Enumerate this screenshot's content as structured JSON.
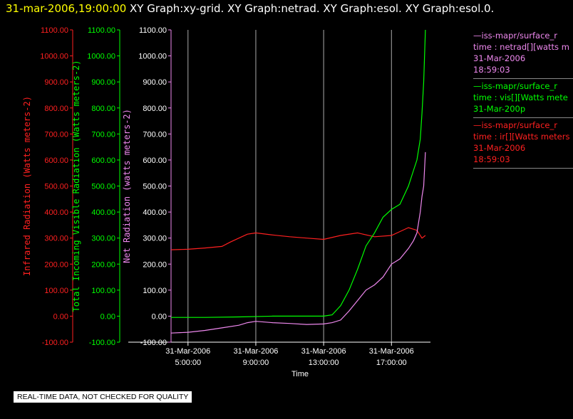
{
  "header": {
    "timestamp": "31-mar-2006,19:00:00",
    "graphs": " XY Graph:xy-grid.  XY Graph:netrad.  XY Graph:esol.  XY Graph:esol.0."
  },
  "qc_note": "REAL-TIME DATA, NOT CHECKED FOR QUALITY",
  "colors": {
    "ir": "#ff2020",
    "vis": "#00ff00",
    "net": "#ee88ee",
    "grid": "#aaaaaa"
  },
  "legend": [
    {
      "color": "#ee88ee",
      "lines": [
        "—iss-mapr/surface_r",
        "time : netrad[][watts m",
        "31-Mar-2006",
        "18:59:03"
      ]
    },
    {
      "color": "#00ff00",
      "lines": [
        "—iss-mapr/surface_r",
        "time : vis[][Watts mete",
        "31-Mar-200p"
      ]
    },
    {
      "color": "#ff2020",
      "lines": [
        "—iss-mapr/surface_r",
        "time : ir[][Watts meters",
        "31-Mar-2006",
        "18:59:03"
      ]
    }
  ],
  "chart_data": {
    "type": "line",
    "xlabel": "Time",
    "x_ticks": [
      {
        "date": "31-Mar-2006",
        "time": "5:00:00",
        "hour": 5
      },
      {
        "date": "31-Mar-2006",
        "time": "9:00:00",
        "hour": 9
      },
      {
        "date": "31-Mar-2006",
        "time": "13:00:00",
        "hour": 13
      },
      {
        "date": "31-Mar-2006",
        "time": "17:00:00",
        "hour": 17
      }
    ],
    "xlim": [
      4,
      19.3
    ],
    "ylim": [
      -100,
      1100
    ],
    "y_ticks": [
      "1100.00",
      "1000.00",
      "900.00",
      "800.00",
      "700.00",
      "600.00",
      "500.00",
      "400.00",
      "300.00",
      "200.00",
      "100.00",
      "0.00",
      "-100.00"
    ],
    "axes": [
      {
        "key": "ir",
        "label": "Infrared Radiation (Watts meters-2)"
      },
      {
        "key": "vis",
        "label": "Total Incoming Visible Radiation (Watts meters-2)"
      },
      {
        "key": "net",
        "label": "Net Radiation (watts meters-2)"
      }
    ],
    "series": [
      {
        "name": "ir",
        "x": [
          4,
          5,
          6,
          7,
          7.5,
          8,
          8.5,
          9,
          10,
          11,
          12,
          13,
          14,
          15,
          16,
          17,
          17.5,
          18,
          18.5,
          18.8,
          19.0
        ],
        "y": [
          255,
          257,
          262,
          268,
          285,
          300,
          315,
          320,
          312,
          305,
          300,
          295,
          310,
          320,
          305,
          310,
          325,
          340,
          330,
          300,
          310
        ]
      },
      {
        "name": "vis",
        "x": [
          4,
          6,
          8,
          10,
          12,
          13,
          13.5,
          14,
          14.5,
          15,
          15.5,
          16,
          16.5,
          17,
          17.5,
          18,
          18.3,
          18.5,
          18.7,
          18.8,
          18.9,
          19.0
        ],
        "y": [
          -5,
          -5,
          -3,
          0,
          0,
          0,
          5,
          40,
          100,
          180,
          270,
          320,
          380,
          410,
          430,
          500,
          560,
          600,
          680,
          780,
          900,
          1100
        ]
      },
      {
        "name": "net",
        "x": [
          4,
          5,
          6,
          7,
          8,
          8.5,
          9,
          10,
          11,
          12,
          13,
          13.5,
          14,
          14.5,
          15,
          15.5,
          16,
          16.5,
          17,
          17.5,
          18,
          18.3,
          18.5,
          18.7,
          18.8,
          18.9,
          19.0
        ],
        "y": [
          -65,
          -62,
          -55,
          -45,
          -35,
          -25,
          -20,
          -25,
          -28,
          -32,
          -30,
          -25,
          -15,
          20,
          60,
          100,
          120,
          150,
          200,
          220,
          260,
          290,
          320,
          400,
          460,
          500,
          630
        ]
      }
    ]
  }
}
